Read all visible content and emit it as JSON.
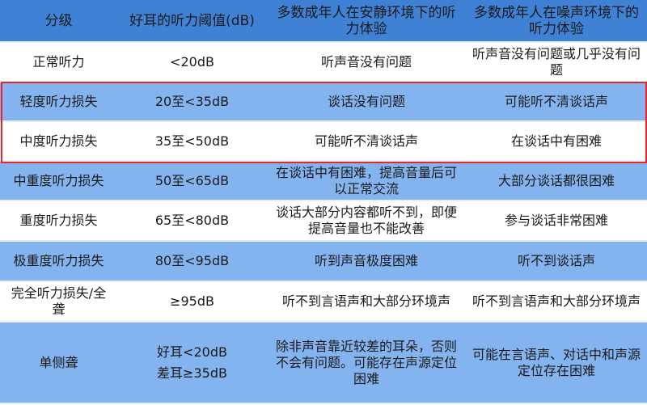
{
  "headers": [
    "分级",
    "好耳的听力阈值(dB)",
    "多数成年人在安静环境下的听力体验",
    "多数成年人在噪声环境下的听力体验"
  ],
  "rows": [
    {
      "grade": "正常听力",
      "threshold": "<20dB",
      "quiet": "听声音没有问题",
      "noisy": "听声音没有问题或几乎没有问题"
    },
    {
      "grade": "轻度听力损失",
      "threshold": "20至<35dB",
      "quiet": "谈话没有问题",
      "noisy": "可能听不清谈话声"
    },
    {
      "grade": "中度听力损失",
      "threshold": "35至<50dB",
      "quiet": "可能听不清谈话声",
      "noisy": "在谈话中有困难"
    },
    {
      "grade": "中重度听力损失",
      "threshold": "50至<65dB",
      "quiet": "在谈话中有困难，提高音量后可以正常交流",
      "noisy": "大部分谈话都很困难"
    },
    {
      "grade": "重度听力损失",
      "threshold": "65至<80dB",
      "quiet": "谈话大部分内容都听不到，即便提高音量也不能改善",
      "noisy": "参与谈话非常困难"
    },
    {
      "grade": "极重度听力损失",
      "threshold": "80至<95dB",
      "quiet": "听到声音极度困难",
      "noisy": "听不到谈话声"
    },
    {
      "grade": "完全听力损失/全聋",
      "threshold": "≥95dB",
      "quiet": "听不到言语声和大部分环境声",
      "noisy": "听不到言语声和大部分环境声"
    },
    {
      "grade": "单侧聋",
      "threshold_lines": [
        "好耳<20dB",
        "差耳≥35dB"
      ],
      "quiet": "除非声音靠近较差的耳朵，否则不会有问题。可能存在声源定位困难",
      "noisy": "可能在言语声、对话中和声源定位存在困难"
    }
  ],
  "colors": {
    "header": "#3f82d5",
    "blue_row": "#84b4f0",
    "white_row": "#ffffff",
    "highlight_border": "#e8262a"
  }
}
